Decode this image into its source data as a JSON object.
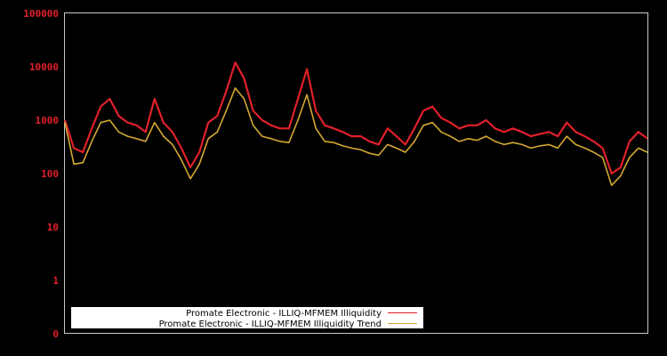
{
  "chart_data": {
    "type": "line",
    "title": "",
    "xlabel": "",
    "ylabel": "",
    "yscale": "log",
    "ylim": [
      0.1,
      100000
    ],
    "yticks": [
      {
        "label": "100000",
        "value": 100000
      },
      {
        "label": "10000",
        "value": 10000
      },
      {
        "label": "1000",
        "value": 1000
      },
      {
        "label": "100",
        "value": 100
      },
      {
        "label": "10",
        "value": 10
      },
      {
        "label": "1",
        "value": 1
      },
      {
        "label": "0",
        "value": 0.1
      }
    ],
    "grid": false,
    "legend_position": "lower-left",
    "x_index": [
      0,
      1,
      2,
      3,
      4,
      5,
      6,
      7,
      8,
      9,
      10,
      11,
      12,
      13,
      14,
      15,
      16,
      17,
      18,
      19,
      20,
      21,
      22,
      23,
      24,
      25,
      26,
      27,
      28,
      29,
      30,
      31,
      32,
      33,
      34,
      35,
      36,
      37,
      38,
      39,
      40,
      41,
      42,
      43,
      44,
      45,
      46,
      47,
      48,
      49,
      50,
      51,
      52,
      53,
      54,
      55,
      56,
      57,
      58,
      59,
      60,
      61,
      62,
      63,
      64,
      65
    ],
    "series": [
      {
        "name": "Promate Electronic - ILLIQ-MFMEM Illiquidity",
        "color": "#e0202a",
        "values": [
          1000,
          300,
          250,
          700,
          1800,
          2500,
          1200,
          900,
          800,
          600,
          2500,
          900,
          600,
          300,
          130,
          250,
          900,
          1200,
          3500,
          12000,
          6000,
          1500,
          1000,
          800,
          700,
          700,
          2500,
          9000,
          1500,
          800,
          700,
          600,
          500,
          500,
          400,
          350,
          700,
          500,
          350,
          700,
          1500,
          1800,
          1100,
          900,
          700,
          800,
          800,
          1000,
          700,
          600,
          700,
          600,
          500,
          550,
          600,
          500,
          900,
          600,
          500,
          400,
          300,
          100,
          130,
          400,
          600,
          450
        ]
      },
      {
        "name": "Promate Electronic - ILLIQ-MFMEM Illiquidity Trend",
        "color": "#d4a832",
        "values": [
          900,
          150,
          160,
          400,
          900,
          1000,
          600,
          500,
          450,
          400,
          900,
          500,
          350,
          180,
          80,
          150,
          450,
          600,
          1500,
          4000,
          2500,
          800,
          500,
          450,
          400,
          380,
          1000,
          3000,
          700,
          400,
          380,
          330,
          300,
          280,
          240,
          220,
          350,
          300,
          250,
          400,
          800,
          900,
          600,
          500,
          400,
          450,
          420,
          500,
          400,
          350,
          380,
          350,
          300,
          330,
          350,
          300,
          500,
          350,
          300,
          250,
          200,
          60,
          90,
          200,
          300,
          250
        ]
      }
    ]
  },
  "legend": {
    "items": [
      {
        "label": "Promate Electronic - ILLIQ-MFMEM Illiquidity",
        "color": "#e0202a"
      },
      {
        "label": "Promate Electronic - ILLIQ-MFMEM Illiquidity Trend",
        "color": "#d4a832"
      }
    ]
  },
  "y_axis": {
    "tick_labels": [
      "100000",
      "10000",
      "1000",
      "100",
      "10",
      "1",
      "0"
    ]
  }
}
